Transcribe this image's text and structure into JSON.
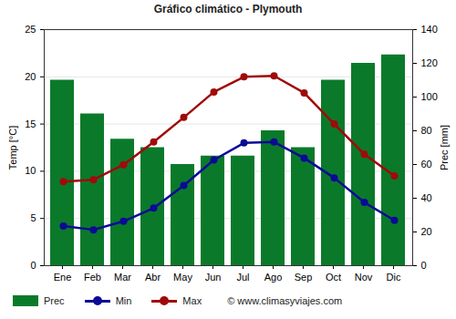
{
  "chart_data": {
    "type": "bar",
    "title": "Gráfico climático - Plymouth",
    "categories": [
      "Ene",
      "Feb",
      "Mar",
      "Abr",
      "May",
      "Jun",
      "Jul",
      "Ago",
      "Sep",
      "Oct",
      "Nov",
      "Dic"
    ],
    "series": [
      {
        "name": "Prec",
        "type": "bar",
        "axis": "y2",
        "color": "#0a7a2a",
        "values": [
          110,
          90,
          75,
          70,
          60,
          65,
          65,
          80,
          70,
          110,
          120,
          125
        ]
      },
      {
        "name": "Min",
        "type": "line",
        "marker": "circle",
        "color": "#0a0a96",
        "values": [
          4.2,
          3.8,
          4.7,
          6.1,
          8.5,
          11.2,
          13.0,
          13.1,
          11.4,
          9.3,
          6.7,
          4.8
        ]
      },
      {
        "name": "Max",
        "type": "line",
        "marker": "circle",
        "color": "#a00a0a",
        "values": [
          8.9,
          9.1,
          10.7,
          13.1,
          15.7,
          18.4,
          20.0,
          20.1,
          18.3,
          15.0,
          11.8,
          9.5
        ]
      }
    ],
    "y_label": "Temp [°C]",
    "y2_label": "Prec [mm]",
    "ylim": [
      0,
      25
    ],
    "yticks": [
      0,
      5,
      10,
      15,
      20,
      25
    ],
    "y2lim": [
      0,
      140
    ],
    "y2ticks": [
      0,
      20,
      40,
      60,
      80,
      100,
      120,
      140
    ],
    "grid": true,
    "legend": "bottom",
    "annotations": [
      "© www.climasyviajes.com"
    ]
  }
}
